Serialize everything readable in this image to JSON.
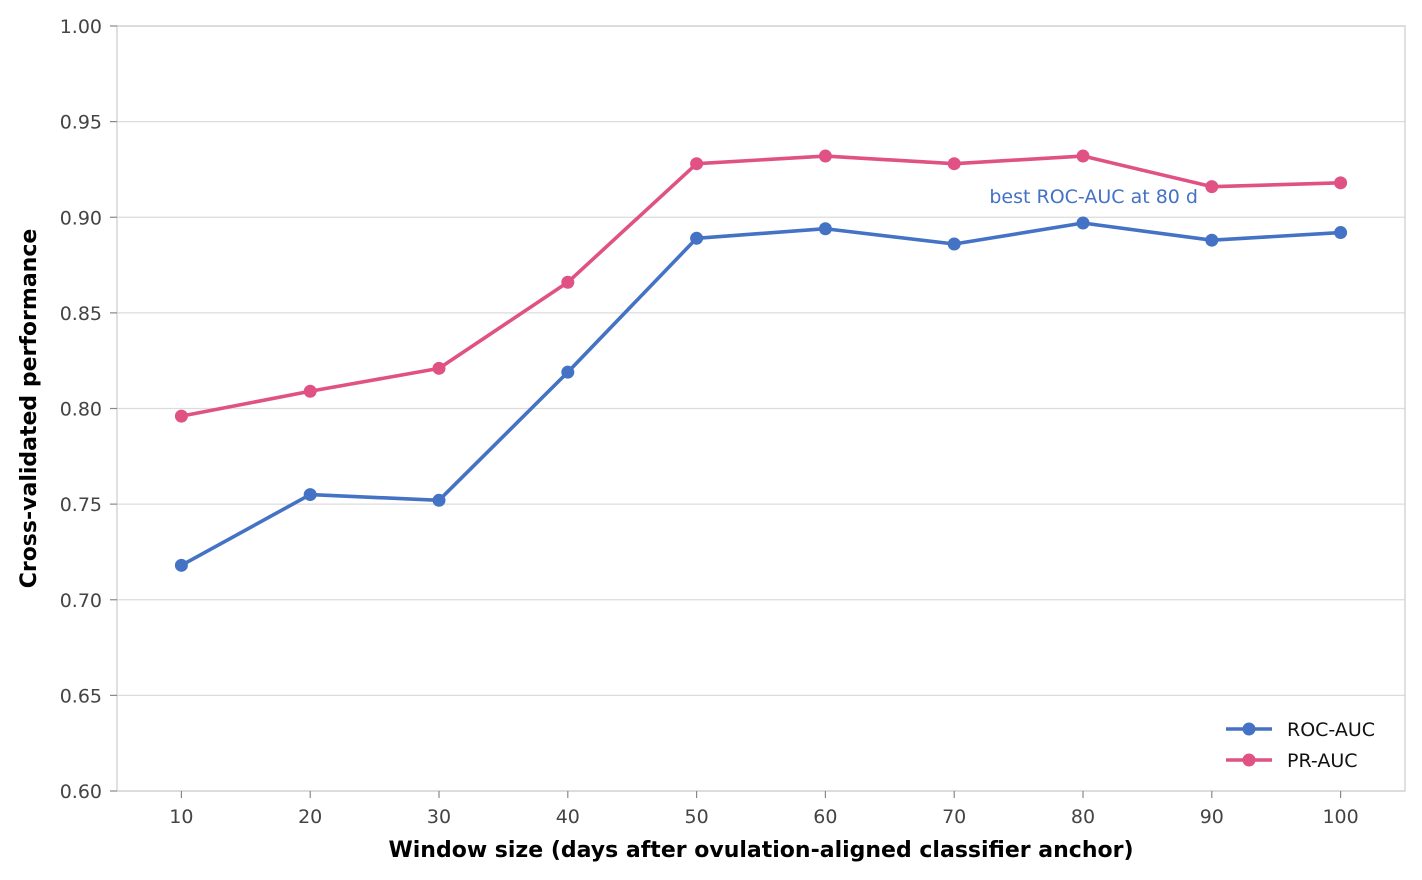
{
  "chart_data": {
    "type": "line",
    "title": "",
    "xlabel": "Window size (days after ovulation-aligned classifier anchor)",
    "ylabel": "Cross-validated performance",
    "x": [
      10,
      20,
      30,
      40,
      50,
      60,
      70,
      80,
      90,
      100
    ],
    "xticks": [
      "10",
      "20",
      "30",
      "40",
      "50",
      "60",
      "70",
      "80",
      "90",
      "100"
    ],
    "xlim": [
      5,
      105
    ],
    "ylim": [
      0.6,
      1.0
    ],
    "yticks": [
      "0.60",
      "0.65",
      "0.70",
      "0.75",
      "0.80",
      "0.85",
      "0.90",
      "0.95",
      "1.00"
    ],
    "grid": "horizontal",
    "legend_position": "lower-right",
    "series": [
      {
        "name": "ROC-AUC",
        "color": "#4472c4",
        "values": [
          0.718,
          0.755,
          0.752,
          0.819,
          0.889,
          0.894,
          0.886,
          0.897,
          0.888,
          0.892
        ]
      },
      {
        "name": "PR-AUC",
        "color": "#e05284",
        "values": [
          0.796,
          0.809,
          0.821,
          0.866,
          0.928,
          0.932,
          0.928,
          0.932,
          0.916,
          0.918
        ]
      }
    ],
    "annotations": [
      {
        "text": "best ROC-AUC at 80 d",
        "x": 80,
        "y": 0.911,
        "color": "#4472c4",
        "anchor": "end"
      }
    ]
  }
}
